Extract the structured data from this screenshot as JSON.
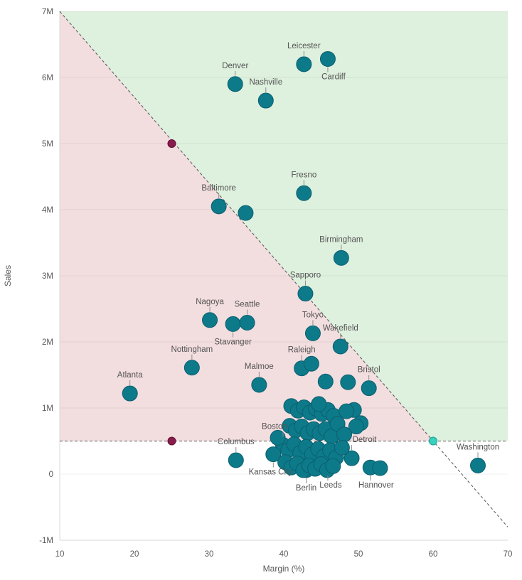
{
  "chart_data": {
    "type": "scatter",
    "title": "",
    "xlabel": "Margin (%)",
    "ylabel": "Sales",
    "xlim": [
      10,
      70
    ],
    "ylim": [
      -1,
      7
    ],
    "grid": "horizontal",
    "x_axis": {
      "title": "Margin (%)",
      "ticks": [
        {
          "v": 10,
          "label": "10"
        },
        {
          "v": 20,
          "label": "20"
        },
        {
          "v": 30,
          "label": "30"
        },
        {
          "v": 40,
          "label": "40"
        },
        {
          "v": 50,
          "label": "50"
        },
        {
          "v": 60,
          "label": "60"
        },
        {
          "v": 70,
          "label": "70"
        }
      ]
    },
    "y_axis": {
      "title": "Sales",
      "ticks": [
        {
          "v": 7,
          "label": "7M"
        },
        {
          "v": 6,
          "label": "6M"
        },
        {
          "v": 5,
          "label": "5M"
        },
        {
          "v": 4,
          "label": "4M"
        },
        {
          "v": 3,
          "label": "3M"
        },
        {
          "v": 2,
          "label": "2M"
        },
        {
          "v": 1,
          "label": "1M"
        },
        {
          "v": 0,
          "label": "0"
        },
        {
          "v": -1,
          "label": "-1M"
        }
      ]
    },
    "colors": {
      "bubble": "#0d7a8a",
      "bubble_stroke": "#0a5f6e",
      "region_green": "#def0de",
      "region_pink": "#f2dddf",
      "ref_line": "#545454",
      "grid": "rgba(0,0,0,0.055)",
      "axis_line": "#d9d9d9",
      "axis_text": "#595959",
      "label_text": "#545454",
      "leader": "#8c8c8c"
    },
    "bubble_radius": 10.5,
    "regions": [
      {
        "name": "above-target-green",
        "color": "#def0de",
        "polygon": [
          [
            10,
            7
          ],
          [
            70,
            7
          ],
          [
            70,
            0.5
          ],
          [
            60,
            0.5
          ]
        ]
      },
      {
        "name": "below-target-pink",
        "color": "#f2dddf",
        "polygon": [
          [
            10,
            7
          ],
          [
            60,
            0.5
          ],
          [
            10,
            0.5
          ]
        ]
      }
    ],
    "reference_lines": [
      {
        "name": "target-diagonal",
        "x1": 10,
        "y1": 7,
        "x2": 70,
        "y2": -0.8,
        "color": "#545454",
        "dash": "4,3"
      },
      {
        "name": "sales-threshold",
        "x1": 10,
        "y1": 0.5,
        "x2": 70,
        "y2": 0.5,
        "color": "#545454",
        "dash": "4,3"
      }
    ],
    "reference_points": [
      {
        "x": 25,
        "y": 5,
        "fill": "#8a1c4d",
        "stroke": "#5c0e31",
        "r": 5.5
      },
      {
        "x": 25,
        "y": 0.5,
        "fill": "#8a1c4d",
        "stroke": "#5c0e31",
        "r": 5.5
      },
      {
        "x": 60,
        "y": 0.5,
        "fill": "#38d1bf",
        "stroke": "#17a191",
        "r": 5.5
      }
    ],
    "points": [
      {
        "city": "Leicester",
        "x": 42.7,
        "y": 6.2,
        "lp": "above"
      },
      {
        "city": "Cardiff",
        "x": 45.9,
        "y": 6.28,
        "lp": "below",
        "ldx": 8
      },
      {
        "city": "Denver",
        "x": 33.5,
        "y": 5.9,
        "lp": "above"
      },
      {
        "city": "Nashville",
        "x": 37.6,
        "y": 5.65,
        "lp": "above"
      },
      {
        "city": "Fresno",
        "x": 42.7,
        "y": 4.25,
        "lp": "above"
      },
      {
        "city": "Baltimore",
        "x": 31.3,
        "y": 4.05,
        "lp": "above"
      },
      {
        "x": 34.9,
        "y": 3.95
      },
      {
        "city": "Birmingham",
        "x": 47.7,
        "y": 3.27,
        "lp": "above"
      },
      {
        "city": "Sapporo",
        "x": 42.9,
        "y": 2.73,
        "lp": "above"
      },
      {
        "city": "Nagoya",
        "x": 30.1,
        "y": 2.33,
        "lp": "above"
      },
      {
        "city": "Stavanger",
        "x": 33.2,
        "y": 2.27,
        "lp": "below"
      },
      {
        "city": "Seattle",
        "x": 35.1,
        "y": 2.29,
        "lp": "above"
      },
      {
        "city": "Tokyo",
        "x": 43.9,
        "y": 2.13,
        "lp": "above"
      },
      {
        "city": "Wakefield",
        "x": 47.6,
        "y": 1.93,
        "lp": "above"
      },
      {
        "city": "Raleigh",
        "x": 42.4,
        "y": 1.6,
        "lp": "above"
      },
      {
        "x": 43.7,
        "y": 1.67
      },
      {
        "city": "Nottingham",
        "x": 27.7,
        "y": 1.61,
        "lp": "above"
      },
      {
        "city": "Malmoe",
        "x": 36.7,
        "y": 1.35,
        "lp": "above"
      },
      {
        "city": "Atlanta",
        "x": 19.4,
        "y": 1.22,
        "lp": "above"
      },
      {
        "city": "Bristol",
        "x": 51.4,
        "y": 1.3,
        "lp": "above"
      },
      {
        "x": 48.6,
        "y": 1.39
      },
      {
        "x": 45.6,
        "y": 1.4
      },
      {
        "city": "Boston",
        "x": 39.9,
        "y": 0.44,
        "lp": "above",
        "ldx": -12
      },
      {
        "city": "Columbus",
        "x": 33.6,
        "y": 0.21,
        "lp": "above"
      },
      {
        "city": "Kansas City",
        "x": 38.6,
        "y": 0.3,
        "lp": "below",
        "ldx": -4
      },
      {
        "city": "Berlin",
        "x": 43.0,
        "y": 0.06,
        "lp": "below"
      },
      {
        "city": "Leeds",
        "x": 45.9,
        "y": 0.1,
        "lp": "below",
        "ldx": 4
      },
      {
        "city": "Detroit",
        "x": 49.1,
        "y": 0.24,
        "lp": "above",
        "ldx": 18
      },
      {
        "city": "Hannover",
        "x": 51.6,
        "y": 0.1,
        "lp": "below",
        "ldx": 8
      },
      {
        "x": 52.9,
        "y": 0.09
      },
      {
        "city": "Washington",
        "x": 66.0,
        "y": 0.13,
        "lp": "above"
      },
      {
        "x": 41.0,
        "y": 1.03
      },
      {
        "x": 41.9,
        "y": 0.96
      },
      {
        "x": 42.7,
        "y": 1.01
      },
      {
        "x": 43.5,
        "y": 0.93
      },
      {
        "x": 44.3,
        "y": 0.99
      },
      {
        "x": 45.1,
        "y": 0.91
      },
      {
        "x": 45.9,
        "y": 0.97
      },
      {
        "x": 46.7,
        "y": 0.88
      },
      {
        "x": 44.7,
        "y": 1.06
      },
      {
        "x": 49.4,
        "y": 0.97
      },
      {
        "x": 50.3,
        "y": 0.77
      },
      {
        "x": 49.7,
        "y": 0.72
      },
      {
        "x": 40.8,
        "y": 0.73
      },
      {
        "x": 41.6,
        "y": 0.66
      },
      {
        "x": 42.4,
        "y": 0.72
      },
      {
        "x": 43.2,
        "y": 0.62
      },
      {
        "x": 44.0,
        "y": 0.68
      },
      {
        "x": 44.8,
        "y": 0.62
      },
      {
        "x": 45.6,
        "y": 0.68
      },
      {
        "x": 46.4,
        "y": 0.57
      },
      {
        "x": 47.2,
        "y": 0.76
      },
      {
        "x": 40.6,
        "y": 0.36
      },
      {
        "x": 41.4,
        "y": 0.45
      },
      {
        "x": 42.2,
        "y": 0.32
      },
      {
        "x": 43.0,
        "y": 0.41
      },
      {
        "x": 43.8,
        "y": 0.3
      },
      {
        "x": 44.6,
        "y": 0.38
      },
      {
        "x": 45.4,
        "y": 0.27
      },
      {
        "x": 46.2,
        "y": 0.36
      },
      {
        "x": 47.0,
        "y": 0.25
      },
      {
        "x": 40.2,
        "y": 0.18
      },
      {
        "x": 41.0,
        "y": 0.1
      },
      {
        "x": 41.8,
        "y": 0.16
      },
      {
        "x": 42.6,
        "y": 0.06
      },
      {
        "x": 43.4,
        "y": 0.13
      },
      {
        "x": 44.2,
        "y": 0.08
      },
      {
        "x": 45.0,
        "y": 0.15
      },
      {
        "x": 45.8,
        "y": 0.06
      },
      {
        "x": 46.6,
        "y": 0.12
      },
      {
        "x": 39.2,
        "y": 0.55
      },
      {
        "x": 48.4,
        "y": 0.95
      },
      {
        "x": 48.1,
        "y": 0.6
      },
      {
        "x": 47.8,
        "y": 0.4
      }
    ]
  }
}
